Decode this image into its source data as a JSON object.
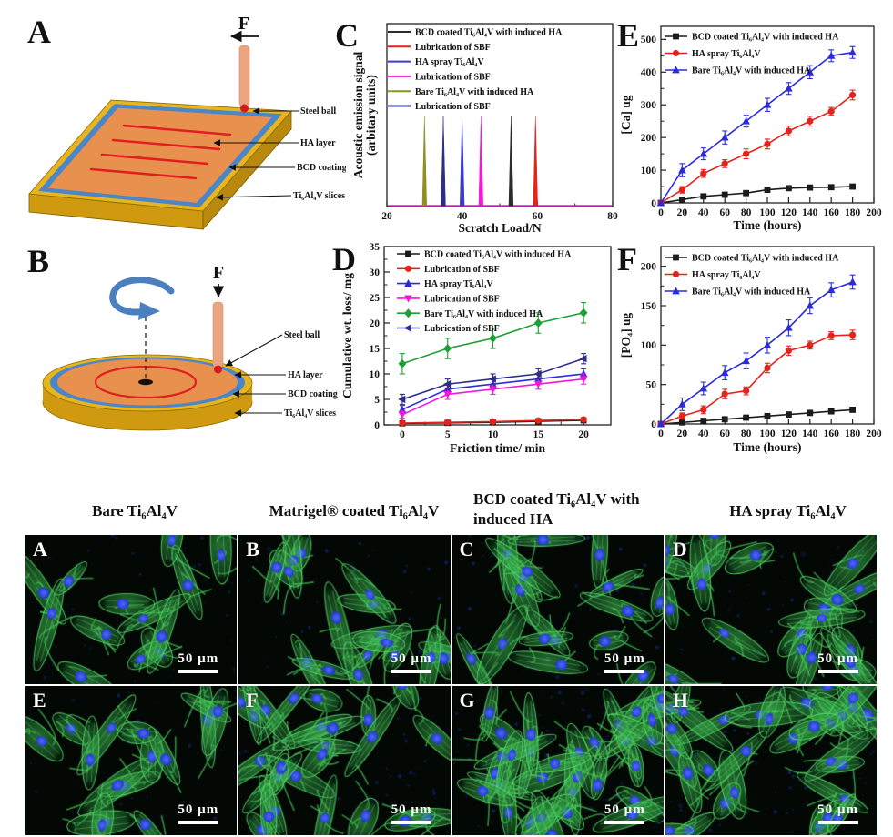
{
  "figure": {
    "diagram_a": {
      "letter": "A",
      "force_label": "F",
      "labels": [
        "Steel ball",
        "HA layer",
        "BCD coating",
        "Ti₆Al₄V slices"
      ]
    },
    "diagram_b": {
      "letter": "B",
      "force_label": "F",
      "labels": [
        "Steel ball",
        "HA layer",
        "BCD coating",
        "Ti₆Al₄V slices"
      ]
    }
  },
  "chart_data": [
    {
      "id": "C",
      "letter": "C",
      "type": "bar",
      "subtype": "spike",
      "xlabel": "Scratch Load/N",
      "ylabel_lines": [
        "Acoustic emission signal",
        "(arbitary units)"
      ],
      "xlim": [
        20,
        80
      ],
      "xticks": [
        20,
        40,
        60,
        80
      ],
      "legend": [
        {
          "label": "BCD coated Ti₆Al₄V with induced HA",
          "color": "#2b2b2b"
        },
        {
          "label": "Lubrication of SBF",
          "color": "#e3241d"
        },
        {
          "label": "HA spray Ti₆Al₄V",
          "color": "#3c3ccc"
        },
        {
          "label": "Lubrication of SBF",
          "color": "#f019d8"
        },
        {
          "label": "Bare Ti₆Al₄V with induced HA",
          "color": "#8f8f22"
        },
        {
          "label": "Lubrication of SBF",
          "color": "#2d2d88"
        }
      ],
      "spikes": [
        {
          "x": 30,
          "color": "#8f8f22"
        },
        {
          "x": 35,
          "color": "#2d2d88"
        },
        {
          "x": 40,
          "color": "#3c3ccc"
        },
        {
          "x": 45,
          "color": "#f019d8"
        },
        {
          "x": 53,
          "color": "#2b2b2b"
        },
        {
          "x": 59.5,
          "color": "#e3241d"
        }
      ]
    },
    {
      "id": "D",
      "letter": "D",
      "type": "line",
      "xlabel": "Friction time/ min",
      "ylabel": "Cumulative wt. loss/ mg",
      "x": [
        0,
        5,
        10,
        15,
        20
      ],
      "xlim": [
        -2,
        23
      ],
      "ylim": [
        0,
        35
      ],
      "xticks": [
        0,
        5,
        10,
        15,
        20
      ],
      "yticks": [
        0,
        5,
        10,
        15,
        20,
        25,
        30,
        35
      ],
      "series": [
        {
          "name": "BCD coated Ti₆Al₄V with induced HA",
          "color": "#1b1b1b",
          "marker": "square",
          "values": [
            0.3,
            0.4,
            0.5,
            0.7,
            0.9
          ],
          "err": [
            0.15,
            0.15,
            0.15,
            0.15,
            0.15
          ]
        },
        {
          "name": "Lubrication of SBF",
          "color": "#e3241d",
          "marker": "circle",
          "values": [
            0.35,
            0.5,
            0.65,
            0.85,
            1.05
          ],
          "err": [
            0.15,
            0.15,
            0.15,
            0.15,
            0.15
          ]
        },
        {
          "name": "HA spray Ti₆Al₄V",
          "color": "#2b2bdc",
          "marker": "triangle-up",
          "values": [
            3,
            7,
            8,
            9,
            10
          ],
          "err": [
            0.8,
            1,
            1,
            1,
            1
          ]
        },
        {
          "name": "Lubrication of SBF",
          "color": "#f019d8",
          "marker": "triangle-down",
          "values": [
            2,
            6,
            7,
            8,
            9
          ],
          "err": [
            0.7,
            1,
            1,
            1,
            1
          ]
        },
        {
          "name": "Bare Ti₆Al₄V with induced HA",
          "color": "#1fa037",
          "marker": "diamond",
          "values": [
            12,
            15,
            17,
            20,
            22
          ],
          "err": [
            2,
            2,
            2,
            2,
            2
          ]
        },
        {
          "name": "Lubrication of SBF",
          "color": "#2d2d88",
          "marker": "triangle-left",
          "values": [
            5,
            8,
            9,
            10,
            13
          ],
          "err": [
            1,
            1,
            1,
            1,
            1
          ]
        }
      ]
    },
    {
      "id": "E",
      "letter": "E",
      "type": "line",
      "xlabel": "Time (hours)",
      "ylabel": "[Ca] ug",
      "x": [
        0,
        20,
        40,
        60,
        80,
        100,
        120,
        140,
        160,
        180
      ],
      "xlim": [
        0,
        200
      ],
      "ylim": [
        0,
        540
      ],
      "xticks": [
        0,
        20,
        40,
        60,
        80,
        100,
        120,
        140,
        160,
        180,
        200
      ],
      "yticks": [
        0,
        100,
        200,
        300,
        400,
        500
      ],
      "series": [
        {
          "name": "BCD coated Ti₆Al₄V with induced HA",
          "color": "#1b1b1b",
          "marker": "square",
          "values": [
            0,
            10,
            20,
            25,
            30,
            40,
            45,
            47,
            48,
            50
          ],
          "err": [
            0,
            5,
            5,
            5,
            5,
            6,
            6,
            6,
            6,
            6
          ]
        },
        {
          "name": "HA spray Ti₆Al₄V",
          "color": "#e3241d",
          "marker": "circle",
          "values": [
            0,
            40,
            90,
            120,
            150,
            180,
            220,
            250,
            280,
            330
          ],
          "err": [
            0,
            10,
            12,
            12,
            15,
            15,
            15,
            15,
            12,
            15
          ]
        },
        {
          "name": "Bare Ti₆Al₄V with induced HA",
          "color": "#2b2bdc",
          "marker": "triangle-up",
          "values": [
            0,
            100,
            150,
            200,
            250,
            300,
            350,
            400,
            450,
            460
          ],
          "err": [
            0,
            20,
            18,
            20,
            18,
            20,
            18,
            20,
            18,
            18
          ]
        }
      ]
    },
    {
      "id": "F",
      "letter": "F",
      "type": "line",
      "xlabel": "Time (hours)",
      "ylabel": "[PO₄] ug",
      "x": [
        0,
        20,
        40,
        60,
        80,
        100,
        120,
        140,
        160,
        180
      ],
      "xlim": [
        0,
        200
      ],
      "ylim": [
        0,
        225
      ],
      "xticks": [
        0,
        20,
        40,
        60,
        80,
        100,
        120,
        140,
        160,
        180,
        200
      ],
      "yticks": [
        0,
        50,
        100,
        150,
        200
      ],
      "series": [
        {
          "name": "BCD coated Ti₆Al₄V with induced HA",
          "color": "#1b1b1b",
          "marker": "square",
          "values": [
            0,
            2,
            4,
            6,
            8,
            10,
            12,
            14,
            16,
            18
          ],
          "err": [
            0,
            1.5,
            1.5,
            2,
            2,
            2,
            2,
            2,
            2,
            3
          ]
        },
        {
          "name": "HA spray Ti₆Al₄V",
          "color": "#e3241d",
          "marker": "circle",
          "values": [
            0,
            10,
            18,
            38,
            42,
            71,
            93,
            100,
            112,
            113
          ],
          "err": [
            0,
            4,
            5,
            6,
            5,
            6,
            6,
            5,
            5,
            6
          ]
        },
        {
          "name": "Bare Ti₆Al₄V with induced HA",
          "color": "#2b2bdc",
          "marker": "triangle-up",
          "values": [
            0,
            25,
            45,
            65,
            80,
            100,
            122,
            150,
            170,
            180
          ],
          "err": [
            0,
            8,
            8,
            9,
            10,
            10,
            10,
            10,
            9,
            9
          ]
        }
      ]
    }
  ],
  "micro": {
    "headers": [
      "Bare Ti₆Al₄V",
      "Matrigel® coated Ti₆Al₄V",
      "BCD coated Ti₆Al₄V with induced HA",
      "HA spray Ti₆Al₄V"
    ],
    "panels": [
      {
        "label": "A",
        "scale_label": "50 µm"
      },
      {
        "label": "B",
        "scale_label": "50 µm"
      },
      {
        "label": "C",
        "scale_label": "50 µm"
      },
      {
        "label": "D",
        "scale_label": "50 µm"
      },
      {
        "label": "E",
        "scale_label": "50 µm"
      },
      {
        "label": "F",
        "scale_label": "50 µm"
      },
      {
        "label": "G",
        "scale_label": "50 µm"
      },
      {
        "label": "H",
        "scale_label": "50 µm"
      }
    ]
  }
}
